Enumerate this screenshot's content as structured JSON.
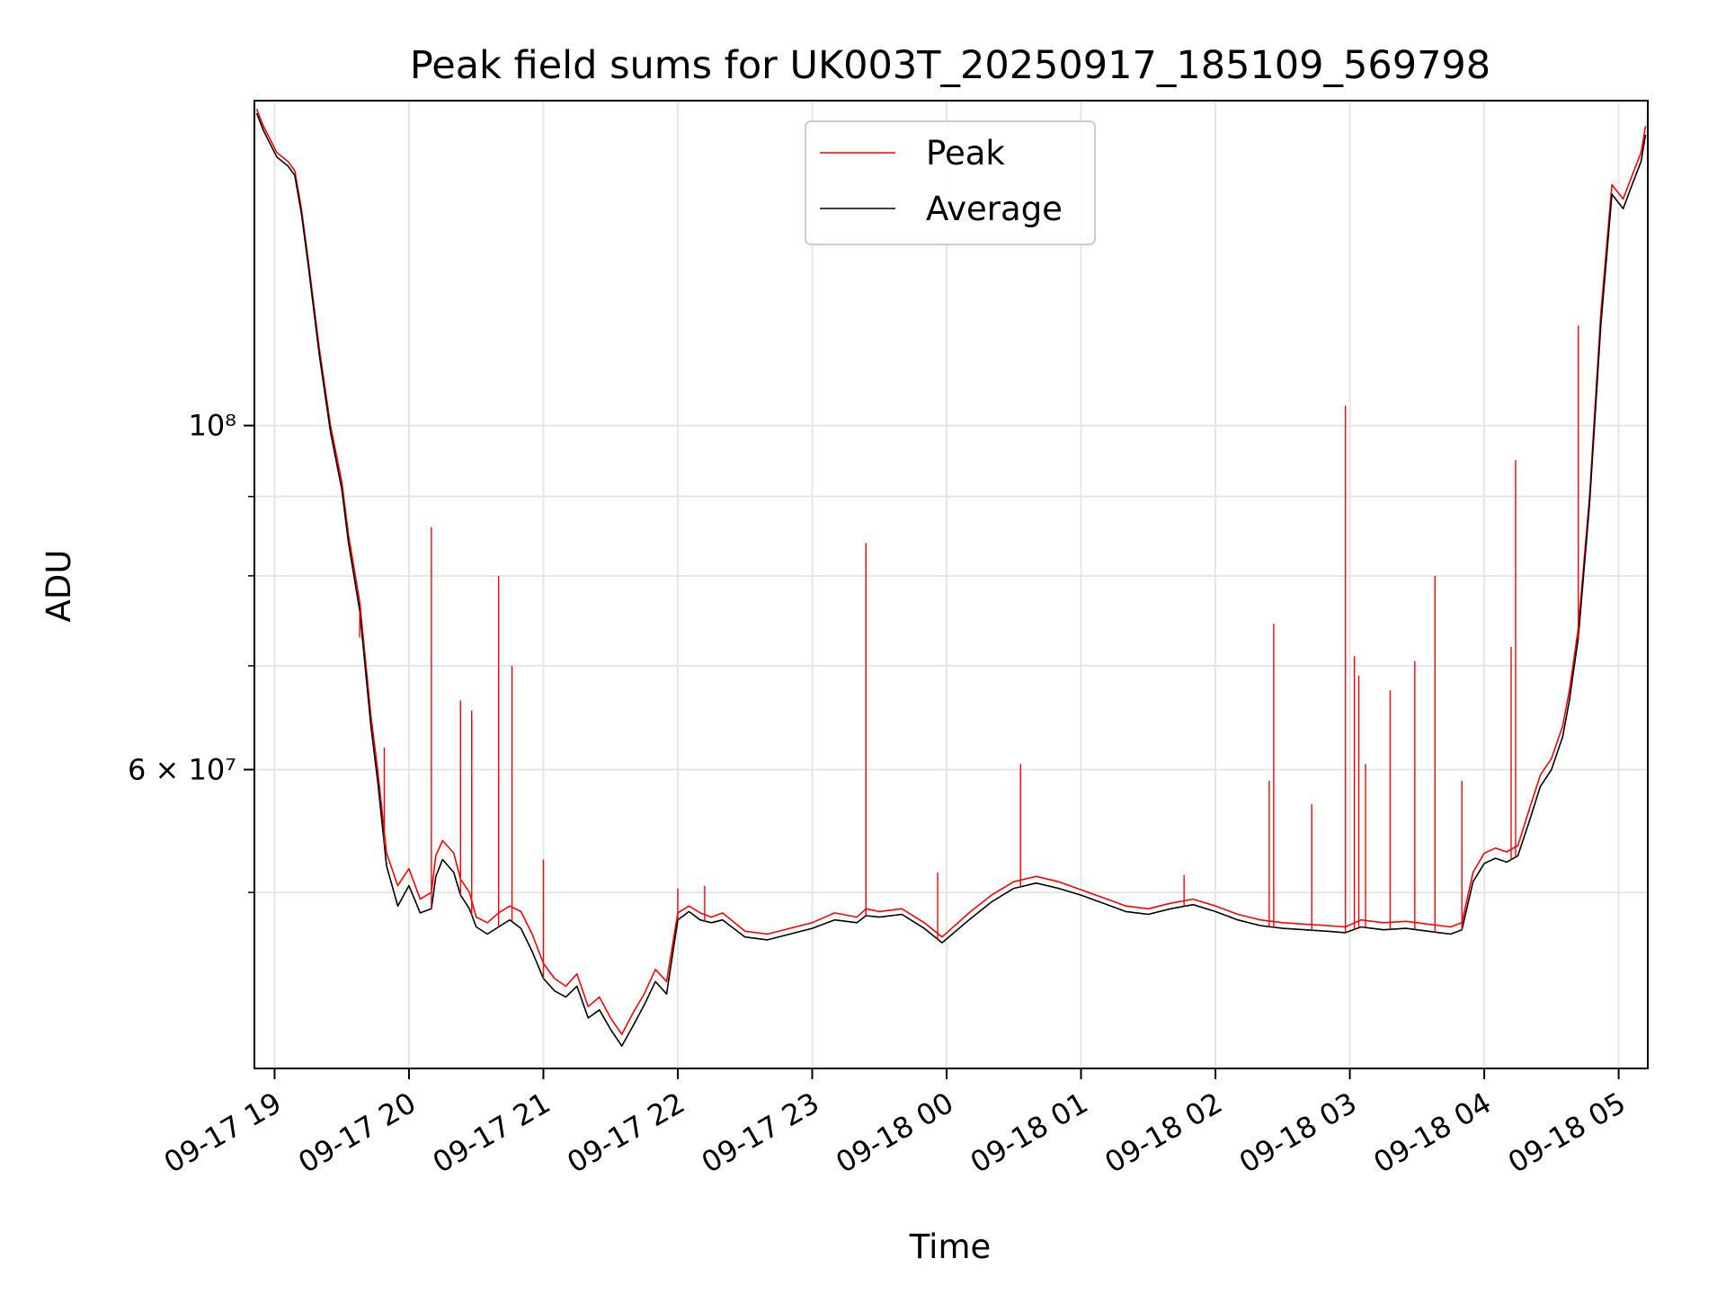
{
  "chart_data": {
    "type": "line",
    "title": "Peak field sums for UK003T_20250917_185109_569798",
    "xlabel": "Time",
    "ylabel": "ADU",
    "y_scale": "log",
    "ylim": [
      38500000,
      162000000
    ],
    "xlim": [
      "2025-09-17 18:51",
      "2025-09-18 05:13"
    ],
    "x_ticks": [
      {
        "value": "2025-09-17 19:00",
        "label": "09-17 19"
      },
      {
        "value": "2025-09-17 20:00",
        "label": "09-17 20"
      },
      {
        "value": "2025-09-17 21:00",
        "label": "09-17 21"
      },
      {
        "value": "2025-09-17 22:00",
        "label": "09-17 22"
      },
      {
        "value": "2025-09-17 23:00",
        "label": "09-17 23"
      },
      {
        "value": "2025-09-18 00:00",
        "label": "09-18 00"
      },
      {
        "value": "2025-09-18 01:00",
        "label": "09-18 01"
      },
      {
        "value": "2025-09-18 02:00",
        "label": "09-18 02"
      },
      {
        "value": "2025-09-18 03:00",
        "label": "09-18 03"
      },
      {
        "value": "2025-09-18 04:00",
        "label": "09-18 04"
      },
      {
        "value": "2025-09-18 05:00",
        "label": "09-18 05"
      }
    ],
    "y_major_ticks": [
      {
        "value": 60000000,
        "label": "6 × 10⁷"
      },
      {
        "value": 100000000,
        "label": "10⁸"
      }
    ],
    "y_minor_gridlines": [
      50000000,
      70000000,
      80000000,
      90000000
    ],
    "grid": true,
    "legend_position": "top-center",
    "series": [
      {
        "name": "Peak",
        "color": "#ff0000",
        "x": [
          "2025-09-17 18:52",
          "2025-09-17 18:55",
          "2025-09-17 18:58",
          "2025-09-17 19:01",
          "2025-09-17 19:06",
          "2025-09-17 19:09",
          "2025-09-17 19:12",
          "2025-09-17 19:15",
          "2025-09-17 19:20",
          "2025-09-17 19:25",
          "2025-09-17 19:30",
          "2025-09-17 19:33",
          "2025-09-17 19:38",
          "2025-09-17 19:40",
          "2025-09-17 19:43",
          "2025-09-17 19:46",
          "2025-09-17 19:50",
          "2025-09-17 19:55",
          "2025-09-17 20:00",
          "2025-09-17 20:05",
          "2025-09-17 20:10",
          "2025-09-17 20:12",
          "2025-09-17 20:15",
          "2025-09-17 20:20",
          "2025-09-17 20:23",
          "2025-09-17 20:27",
          "2025-09-17 20:30",
          "2025-09-17 20:35",
          "2025-09-17 20:40",
          "2025-09-17 20:45",
          "2025-09-17 20:50",
          "2025-09-17 20:55",
          "2025-09-17 21:00",
          "2025-09-17 21:05",
          "2025-09-17 21:10",
          "2025-09-17 21:15",
          "2025-09-17 21:20",
          "2025-09-17 21:25",
          "2025-09-17 21:30",
          "2025-09-17 21:35",
          "2025-09-17 21:40",
          "2025-09-17 21:45",
          "2025-09-17 21:50",
          "2025-09-17 21:55",
          "2025-09-17 22:00",
          "2025-09-17 22:05",
          "2025-09-17 22:10",
          "2025-09-17 22:15",
          "2025-09-17 22:20",
          "2025-09-17 22:30",
          "2025-09-17 22:40",
          "2025-09-17 22:50",
          "2025-09-17 23:00",
          "2025-09-17 23:10",
          "2025-09-17 23:20",
          "2025-09-17 23:24",
          "2025-09-17 23:30",
          "2025-09-17 23:40",
          "2025-09-17 23:50",
          "2025-09-17 23:58",
          "2025-09-18 00:10",
          "2025-09-18 00:20",
          "2025-09-18 00:30",
          "2025-09-18 00:40",
          "2025-09-18 00:50",
          "2025-09-18 01:00",
          "2025-09-18 01:10",
          "2025-09-18 01:20",
          "2025-09-18 01:30",
          "2025-09-18 01:40",
          "2025-09-18 01:50",
          "2025-09-18 02:00",
          "2025-09-18 02:10",
          "2025-09-18 02:20",
          "2025-09-18 02:30",
          "2025-09-18 02:40",
          "2025-09-18 02:50",
          "2025-09-18 02:58",
          "2025-09-18 03:05",
          "2025-09-18 03:15",
          "2025-09-18 03:25",
          "2025-09-18 03:35",
          "2025-09-18 03:40",
          "2025-09-18 03:45",
          "2025-09-18 03:50",
          "2025-09-18 03:55",
          "2025-09-18 04:00",
          "2025-09-18 04:05",
          "2025-09-18 04:10",
          "2025-09-18 04:15",
          "2025-09-18 04:20",
          "2025-09-18 04:25",
          "2025-09-18 04:30",
          "2025-09-18 04:35",
          "2025-09-18 04:38",
          "2025-09-18 04:42",
          "2025-09-18 04:47",
          "2025-09-18 04:52",
          "2025-09-18 04:57",
          "2025-09-18 05:02",
          "2025-09-18 05:06",
          "2025-09-18 05:10",
          "2025-09-18 05:12"
        ],
        "y": [
          160000000,
          156000000,
          153000000,
          150000000,
          148000000,
          146000000,
          138000000,
          128000000,
          112000000,
          100000000,
          92000000,
          85000000,
          77000000,
          72000000,
          65000000,
          60000000,
          53000000,
          50500000,
          51800000,
          49500000,
          50000000,
          52800000,
          54000000,
          53000000,
          51000000,
          50000000,
          48200000,
          47800000,
          48500000,
          49000000,
          48600000,
          47000000,
          45000000,
          44000000,
          43500000,
          44300000,
          42200000,
          42800000,
          41500000,
          40500000,
          41800000,
          43000000,
          44600000,
          43800000,
          48500000,
          49000000,
          48500000,
          48200000,
          48500000,
          47200000,
          47000000,
          47400000,
          47800000,
          48500000,
          48200000,
          48800000,
          48600000,
          48800000,
          47800000,
          46800000,
          48500000,
          49800000,
          50800000,
          51200000,
          50800000,
          50200000,
          49600000,
          49000000,
          48800000,
          49200000,
          49500000,
          49000000,
          48400000,
          48000000,
          47800000,
          47700000,
          47600000,
          47500000,
          48000000,
          47800000,
          47900000,
          47700000,
          47600000,
          47500000,
          47800000,
          51500000,
          53000000,
          53400000,
          53100000,
          53600000,
          56500000,
          59500000,
          61000000,
          64000000,
          67500000,
          74000000,
          90000000,
          118000000,
          143000000,
          140000000,
          145000000,
          150000000,
          156000000
        ]
      },
      {
        "name": "Average",
        "color": "#000000",
        "x": [
          "2025-09-17 18:52",
          "2025-09-17 18:55",
          "2025-09-17 18:58",
          "2025-09-17 19:01",
          "2025-09-17 19:06",
          "2025-09-17 19:09",
          "2025-09-17 19:12",
          "2025-09-17 19:15",
          "2025-09-17 19:20",
          "2025-09-17 19:25",
          "2025-09-17 19:30",
          "2025-09-17 19:33",
          "2025-09-17 19:38",
          "2025-09-17 19:40",
          "2025-09-17 19:43",
          "2025-09-17 19:46",
          "2025-09-17 19:50",
          "2025-09-17 19:55",
          "2025-09-17 20:00",
          "2025-09-17 20:05",
          "2025-09-17 20:10",
          "2025-09-17 20:12",
          "2025-09-17 20:15",
          "2025-09-17 20:20",
          "2025-09-17 20:23",
          "2025-09-17 20:27",
          "2025-09-17 20:30",
          "2025-09-17 20:35",
          "2025-09-17 20:40",
          "2025-09-17 20:45",
          "2025-09-17 20:50",
          "2025-09-17 20:55",
          "2025-09-17 21:00",
          "2025-09-17 21:05",
          "2025-09-17 21:10",
          "2025-09-17 21:15",
          "2025-09-17 21:20",
          "2025-09-17 21:25",
          "2025-09-17 21:30",
          "2025-09-17 21:35",
          "2025-09-17 21:40",
          "2025-09-17 21:45",
          "2025-09-17 21:50",
          "2025-09-17 21:55",
          "2025-09-17 22:00",
          "2025-09-17 22:05",
          "2025-09-17 22:10",
          "2025-09-17 22:15",
          "2025-09-17 22:20",
          "2025-09-17 22:30",
          "2025-09-17 22:40",
          "2025-09-17 22:50",
          "2025-09-17 23:00",
          "2025-09-17 23:10",
          "2025-09-17 23:20",
          "2025-09-17 23:24",
          "2025-09-17 23:30",
          "2025-09-17 23:40",
          "2025-09-17 23:50",
          "2025-09-17 23:58",
          "2025-09-18 00:10",
          "2025-09-18 00:20",
          "2025-09-18 00:30",
          "2025-09-18 00:40",
          "2025-09-18 00:50",
          "2025-09-18 01:00",
          "2025-09-18 01:10",
          "2025-09-18 01:20",
          "2025-09-18 01:30",
          "2025-09-18 01:40",
          "2025-09-18 01:50",
          "2025-09-18 02:00",
          "2025-09-18 02:10",
          "2025-09-18 02:20",
          "2025-09-18 02:30",
          "2025-09-18 02:40",
          "2025-09-18 02:50",
          "2025-09-18 02:58",
          "2025-09-18 03:05",
          "2025-09-18 03:15",
          "2025-09-18 03:25",
          "2025-09-18 03:35",
          "2025-09-18 03:40",
          "2025-09-18 03:45",
          "2025-09-18 03:50",
          "2025-09-18 03:55",
          "2025-09-18 04:00",
          "2025-09-18 04:05",
          "2025-09-18 04:10",
          "2025-09-18 04:15",
          "2025-09-18 04:20",
          "2025-09-18 04:25",
          "2025-09-18 04:30",
          "2025-09-18 04:35",
          "2025-09-18 04:38",
          "2025-09-18 04:42",
          "2025-09-18 04:47",
          "2025-09-18 04:52",
          "2025-09-18 04:57",
          "2025-09-18 05:02",
          "2025-09-18 05:06",
          "2025-09-18 05:10",
          "2025-09-18 05:12"
        ],
        "y": [
          159000000,
          155000000,
          152000000,
          149000000,
          147000000,
          145000000,
          137000000,
          127000000,
          111000000,
          99000000,
          91000000,
          84000000,
          76000000,
          71000000,
          64000000,
          59000000,
          52000000,
          49000000,
          50500000,
          48500000,
          48800000,
          51200000,
          52500000,
          51500000,
          49800000,
          48800000,
          47500000,
          47000000,
          47500000,
          48000000,
          47400000,
          45800000,
          44000000,
          43200000,
          42800000,
          43500000,
          41500000,
          42000000,
          40800000,
          39800000,
          41000000,
          42300000,
          43800000,
          43000000,
          48000000,
          48600000,
          48000000,
          47800000,
          48000000,
          46800000,
          46600000,
          47000000,
          47400000,
          48000000,
          47800000,
          48300000,
          48200000,
          48400000,
          47400000,
          46400000,
          48000000,
          49300000,
          50300000,
          50700000,
          50300000,
          49800000,
          49200000,
          48600000,
          48400000,
          48800000,
          49100000,
          48600000,
          48000000,
          47600000,
          47400000,
          47300000,
          47200000,
          47100000,
          47500000,
          47300000,
          47400000,
          47200000,
          47100000,
          47000000,
          47300000,
          50800000,
          52200000,
          52600000,
          52300000,
          52800000,
          55500000,
          58500000,
          60000000,
          63000000,
          66500000,
          73000000,
          89000000,
          116000000,
          141000000,
          138000000,
          143000000,
          148000000,
          154000000
        ]
      }
    ],
    "spikes": [
      {
        "x": "2025-09-17 19:38",
        "y": 73000000
      },
      {
        "x": "2025-09-17 19:49",
        "y": 62000000
      },
      {
        "x": "2025-09-17 20:10",
        "y": 86000000
      },
      {
        "x": "2025-09-17 20:23",
        "y": 66500000
      },
      {
        "x": "2025-09-17 20:28",
        "y": 65500000
      },
      {
        "x": "2025-09-17 20:40",
        "y": 80000000
      },
      {
        "x": "2025-09-17 20:46",
        "y": 70000000
      },
      {
        "x": "2025-09-17 21:00",
        "y": 52500000
      },
      {
        "x": "2025-09-17 22:00",
        "y": 50300000
      },
      {
        "x": "2025-09-17 22:12",
        "y": 50500000
      },
      {
        "x": "2025-09-17 23:24",
        "y": 84000000
      },
      {
        "x": "2025-09-17 23:56",
        "y": 51500000
      },
      {
        "x": "2025-09-18 00:33",
        "y": 60500000
      },
      {
        "x": "2025-09-18 01:46",
        "y": 51300000
      },
      {
        "x": "2025-09-18 02:24",
        "y": 59000000
      },
      {
        "x": "2025-09-18 02:26",
        "y": 74500000
      },
      {
        "x": "2025-09-18 02:43",
        "y": 57000000
      },
      {
        "x": "2025-09-18 02:58",
        "y": 103000000
      },
      {
        "x": "2025-09-18 03:02",
        "y": 71000000
      },
      {
        "x": "2025-09-18 03:04",
        "y": 69000000
      },
      {
        "x": "2025-09-18 03:07",
        "y": 60500000
      },
      {
        "x": "2025-09-18 03:18",
        "y": 67500000
      },
      {
        "x": "2025-09-18 03:29",
        "y": 70500000
      },
      {
        "x": "2025-09-18 03:38",
        "y": 80000000
      },
      {
        "x": "2025-09-18 03:50",
        "y": 59000000
      },
      {
        "x": "2025-09-18 04:12",
        "y": 72000000
      },
      {
        "x": "2025-09-18 04:14",
        "y": 95000000
      },
      {
        "x": "2025-09-18 04:42",
        "y": 116000000
      }
    ]
  }
}
